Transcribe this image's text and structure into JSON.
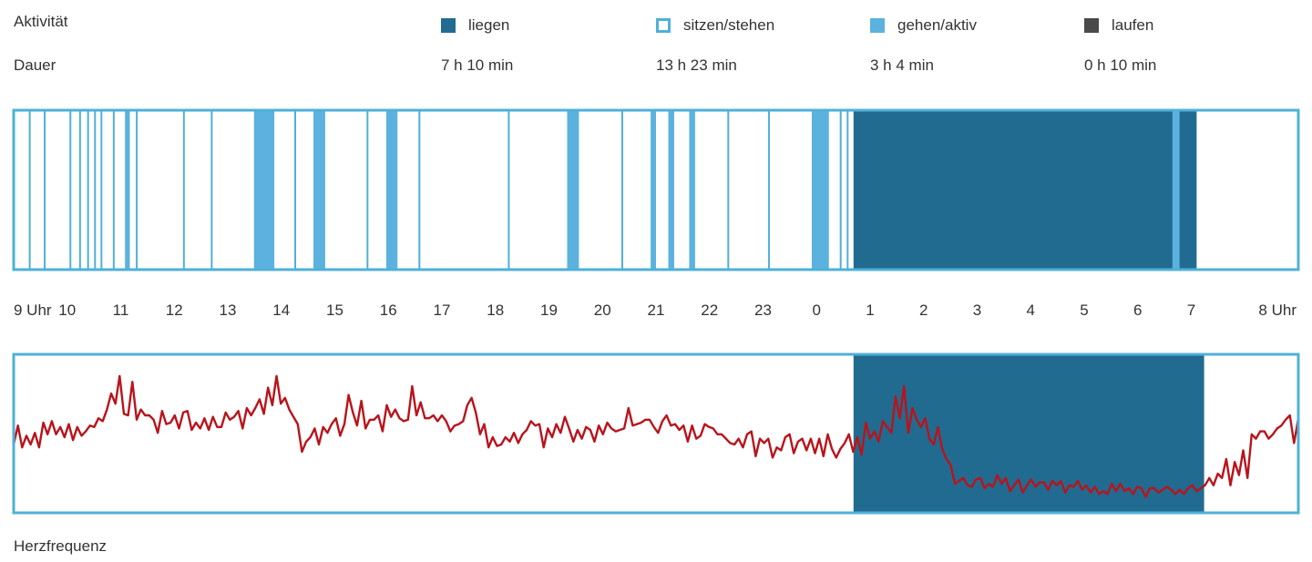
{
  "header": {
    "activity_label": "Aktivität",
    "duration_label": "Dauer",
    "heart_rate_label": "Herzfrequenz"
  },
  "colors": {
    "liegen": "#216b91",
    "sitzen_border": "#4fb0d9",
    "gehen": "#5bb2de",
    "laufen": "#4a4a4a",
    "heart_line": "#b8141c",
    "frame": "#4fb0d9"
  },
  "legend": [
    {
      "key": "liegen",
      "label": "liegen",
      "duration": "7 h 10 min",
      "icon": "filled-dark-blue-square"
    },
    {
      "key": "sitzen",
      "label": "sitzen/stehen",
      "duration": "13 h 23 min",
      "icon": "outlined-blue-square"
    },
    {
      "key": "gehen",
      "label": "gehen/aktiv",
      "duration": "3 h 4 min",
      "icon": "filled-light-blue-square"
    },
    {
      "key": "laufen",
      "label": "laufen",
      "duration": "0 h 10 min",
      "icon": "filled-dark-gray-square"
    }
  ],
  "chart_data": [
    {
      "type": "bar",
      "title": "Aktivität",
      "x_unit": "hours since 9 Uhr",
      "xlim": [
        0,
        24
      ],
      "x_tick_labels": [
        "9 Uhr",
        "10",
        "11",
        "12",
        "13",
        "14",
        "15",
        "16",
        "17",
        "18",
        "19",
        "20",
        "21",
        "22",
        "23",
        "0",
        "1",
        "2",
        "3",
        "4",
        "5",
        "6",
        "7",
        "8 Uhr"
      ],
      "segments": [
        {
          "activity": "gehen/aktiv",
          "start": 4.49,
          "end": 4.87
        },
        {
          "activity": "gehen/aktiv",
          "start": 5.6,
          "end": 5.82
        },
        {
          "activity": "gehen/aktiv",
          "start": 6.96,
          "end": 7.17
        },
        {
          "activity": "gehen/aktiv",
          "start": 10.34,
          "end": 10.56
        },
        {
          "activity": "gehen/aktiv",
          "start": 11.9,
          "end": 12.0
        },
        {
          "activity": "gehen/aktiv",
          "start": 12.23,
          "end": 12.34
        },
        {
          "activity": "gehen/aktiv",
          "start": 12.62,
          "end": 12.73
        },
        {
          "activity": "gehen/aktiv",
          "start": 14.91,
          "end": 15.23
        },
        {
          "activity": "gehen/aktiv",
          "start": 2.08,
          "end": 2.17
        },
        {
          "activity": "liegen",
          "start": 15.69,
          "end": 21.65
        },
        {
          "activity": "gehen/aktiv",
          "start": 21.65,
          "end": 21.78
        },
        {
          "activity": "liegen",
          "start": 21.78,
          "end": 22.1
        }
      ],
      "divider_lines": [
        0.3,
        0.58,
        1.06,
        1.24,
        1.39,
        1.52,
        1.64,
        1.87,
        2.3,
        3.18,
        3.7,
        5.26,
        6.61,
        7.58,
        9.25,
        11.37,
        13.35,
        14.11,
        15.45,
        15.58
      ]
    },
    {
      "type": "line",
      "title": "Herzfrequenz",
      "series": [
        {
          "name": "Herzfrequenz",
          "y": [
            40,
            53,
            38,
            46,
            40,
            48,
            38,
            55,
            47,
            56,
            47,
            52,
            45,
            54,
            43,
            52,
            46,
            49,
            53,
            52,
            58,
            56,
            64,
            75,
            68,
            87,
            61,
            60,
            83,
            57,
            64,
            60,
            60,
            57,
            48,
            63,
            54,
            55,
            60,
            51,
            62,
            63,
            50,
            55,
            51,
            58,
            50,
            59,
            52,
            52,
            62,
            57,
            59,
            63,
            51,
            65,
            60,
            65,
            71,
            61,
            79,
            67,
            87,
            68,
            72,
            64,
            59,
            54,
            35,
            42,
            45,
            51,
            40,
            52,
            48,
            54,
            58,
            46,
            54,
            74,
            62,
            53,
            70,
            51,
            57,
            57,
            60,
            49,
            67,
            59,
            64,
            58,
            56,
            57,
            80,
            60,
            69,
            58,
            58,
            60,
            56,
            60,
            56,
            49,
            53,
            54,
            56,
            67,
            72,
            62,
            47,
            54,
            38,
            45,
            39,
            40,
            45,
            42,
            48,
            41,
            47,
            50,
            56,
            53,
            54,
            38,
            51,
            45,
            54,
            48,
            59,
            51,
            42,
            50,
            44,
            52,
            50,
            42,
            53,
            47,
            55,
            51,
            49,
            50,
            51,
            65,
            53,
            54,
            55,
            57,
            57,
            52,
            48,
            56,
            60,
            53,
            54,
            50,
            53,
            42,
            53,
            44,
            46,
            54,
            52,
            51,
            47,
            47,
            44,
            41,
            40,
            44,
            38,
            47,
            49,
            32,
            44,
            41,
            44,
            31,
            38,
            36,
            45,
            47,
            34,
            42,
            44,
            36,
            44,
            34,
            44,
            32,
            47,
            37,
            31,
            37,
            41,
            47,
            35,
            45,
            33,
            55,
            44,
            49,
            42,
            56,
            52,
            48,
            73,
            58,
            80,
            48,
            65,
            57,
            52,
            58,
            44,
            40,
            52,
            37,
            30,
            26,
            13,
            15,
            17,
            12,
            11,
            16,
            17,
            10,
            13,
            11,
            19,
            13,
            17,
            8,
            12,
            16,
            7,
            12,
            16,
            11,
            14,
            14,
            9,
            15,
            12,
            15,
            7,
            12,
            11,
            15,
            9,
            12,
            7,
            11,
            6,
            8,
            6,
            13,
            8,
            13,
            8,
            10,
            6,
            11,
            10,
            4,
            10,
            10,
            7,
            9,
            11,
            9,
            6,
            9,
            6,
            10,
            12,
            8,
            10,
            12,
            17,
            12,
            20,
            17,
            30,
            12,
            28,
            19,
            36,
            17,
            47,
            44,
            49,
            49,
            44,
            47,
            51,
            53,
            57,
            60,
            41,
            58
          ]
        }
      ],
      "highlight_band": {
        "activity": "liegen",
        "start": 15.69,
        "end": 22.24
      }
    }
  ]
}
